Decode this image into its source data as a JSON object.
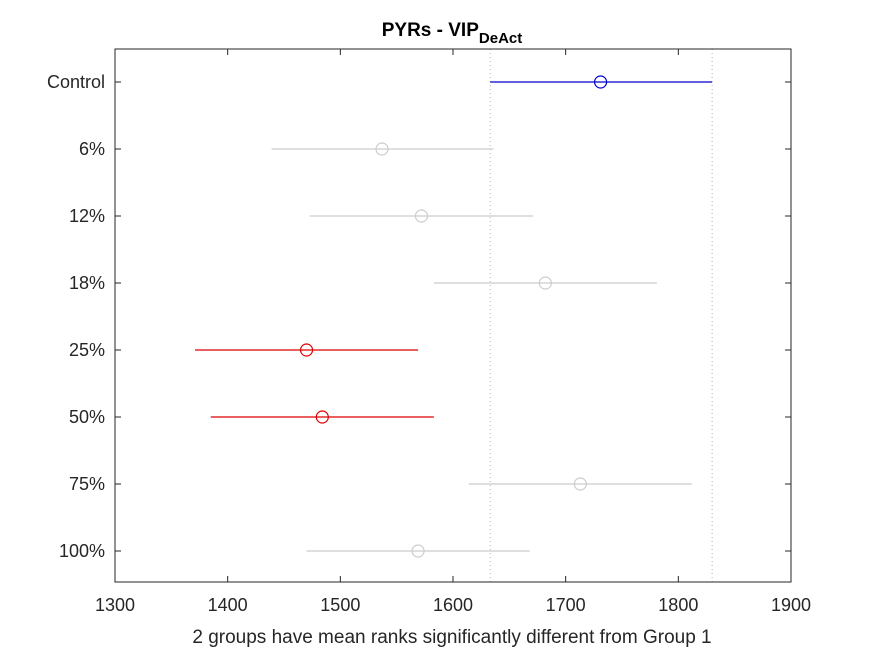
{
  "chart_data": {
    "type": "scatter",
    "title": "PYRs - VIP",
    "title_subscript": "DeAct",
    "xlabel": "2 groups have mean ranks significantly different from Group 1",
    "ylabel": "",
    "xlim": [
      1300,
      1900
    ],
    "xticks": [
      1300,
      1400,
      1500,
      1600,
      1700,
      1800,
      1900
    ],
    "grid": false,
    "reference_lines": [
      1633,
      1830
    ],
    "groups": [
      {
        "label": "Control",
        "mean": 1731,
        "lower": 1633,
        "upper": 1830,
        "color": "#0000cc"
      },
      {
        "label": "6%",
        "mean": 1537,
        "lower": 1439,
        "upper": 1636,
        "color": "#cccccc"
      },
      {
        "label": "12%",
        "mean": 1572,
        "lower": 1473,
        "upper": 1671,
        "color": "#cccccc"
      },
      {
        "label": "18%",
        "mean": 1682,
        "lower": 1583,
        "upper": 1781,
        "color": "#cccccc"
      },
      {
        "label": "25%",
        "mean": 1470,
        "lower": 1371,
        "upper": 1569,
        "color": "#dd0000"
      },
      {
        "label": "50%",
        "mean": 1484,
        "lower": 1385,
        "upper": 1583,
        "color": "#dd0000"
      },
      {
        "label": "75%",
        "mean": 1713,
        "lower": 1614,
        "upper": 1812,
        "color": "#cccccc"
      },
      {
        "label": "100%",
        "mean": 1569,
        "lower": 1470,
        "upper": 1668,
        "color": "#cccccc"
      }
    ]
  }
}
